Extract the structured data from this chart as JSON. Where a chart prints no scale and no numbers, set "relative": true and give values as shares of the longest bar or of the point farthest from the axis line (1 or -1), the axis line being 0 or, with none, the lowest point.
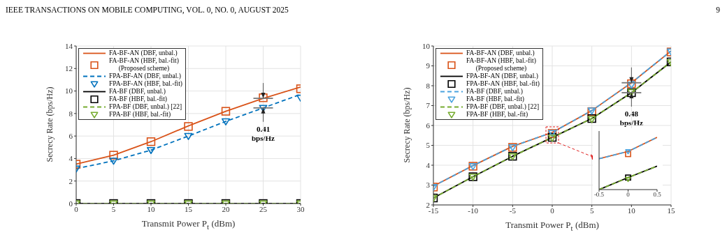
{
  "chart_data": [
    {
      "type": "line",
      "xlabel": "Transmit Power P$_{t}$ (dBm)",
      "ylabel": "Secrecy Rate (bps/Hz)",
      "x": [
        0,
        5,
        10,
        15,
        20,
        25,
        30
      ],
      "xlim": [
        0,
        30
      ],
      "xticks": [
        0,
        5,
        10,
        15,
        20,
        25,
        30
      ],
      "ylim": [
        0,
        14
      ],
      "yticks": [
        0,
        2,
        4,
        6,
        8,
        10,
        12,
        14
      ],
      "grid": true,
      "legend": "top left",
      "annotations": [
        "IEEE TRANSACTIONS ON MOBILE COMPUTING, VOL. 0, NO. 0, AUGUST 2025",
        {
          "text": "0.41\nbps/Hz",
          "x": 25,
          "y": 8.5
        }
      ],
      "series": [
        {
          "name": "FA-BF-AN (DBF, unbal.)",
          "type": "line",
          "color": "#d95319",
          "line_style": "solid",
          "marker": "none",
          "values": [
            3.5,
            4.3,
            5.5,
            6.9,
            8.2,
            9.35,
            10.35
          ]
        },
        {
          "name": "FA-BF-AN (HBF, bal.-fit)\n(Proposed scheme)",
          "type": "scatter",
          "color": "#d95319",
          "marker": "square",
          "values": [
            3.5,
            4.3,
            5.5,
            6.85,
            8.2,
            9.4,
            10.2
          ]
        },
        {
          "name": "FPA-BF-AN (DBF, unbal.)",
          "type": "line",
          "color": "#0072bd",
          "line_style": "dashed",
          "marker": "none",
          "values": [
            3.1,
            3.8,
            4.75,
            6.0,
            7.3,
            8.5,
            9.7
          ]
        },
        {
          "name": "FPA-BF-AN (HBF, bal.-fit)",
          "type": "scatter",
          "color": "#0072bd",
          "marker": "triangle",
          "values": [
            3.1,
            3.8,
            4.75,
            6.0,
            7.3,
            8.5,
            9.4
          ]
        },
        {
          "name": "FA-BF (DBF, unbal.)",
          "type": "line",
          "color": "#000000",
          "line_style": "solid",
          "marker": "none",
          "values": [
            0,
            0,
            0,
            0,
            0,
            0,
            0
          ]
        },
        {
          "name": "FA-BF (HBF, bal.-fit)",
          "type": "scatter",
          "color": "#000000",
          "marker": "square",
          "values": [
            0,
            0,
            0,
            0,
            0,
            0,
            0
          ]
        },
        {
          "name": "FPA-BF  (DBF, unbal.) [22]",
          "type": "line",
          "color": "#77ac30",
          "line_style": "dashed",
          "marker": "none",
          "values": [
            0,
            0,
            0,
            0,
            0,
            0,
            0
          ]
        },
        {
          "name": "FPA-BF (HBF, bal.-fit)",
          "type": "scatter",
          "color": "#77ac30",
          "marker": "triangle",
          "values": [
            0,
            0,
            0,
            0,
            0,
            0,
            0
          ]
        }
      ]
    },
    {
      "type": "line",
      "xlabel": "Transmit Power P$_{t}$ (dBm)",
      "ylabel": "Secrecy Rate (bps/Hz)",
      "x": [
        -15,
        -10,
        -5,
        0,
        5,
        10,
        15
      ],
      "xlim": [
        -15,
        15
      ],
      "xticks": [
        -15,
        -10,
        -5,
        0,
        5,
        10,
        15
      ],
      "ylim": [
        2,
        10
      ],
      "yticks": [
        2,
        3,
        4,
        5,
        6,
        7,
        8,
        9,
        10
      ],
      "grid": true,
      "legend": "top left",
      "annotations": [
        "9",
        {
          "text": "0.48\nbps/Hz",
          "x": 10,
          "y": 7.65
        }
      ],
      "series": [
        {
          "name": "FA-BF-AN (DBF, unbal.)",
          "type": "line",
          "color": "#d95319",
          "line_style": "solid",
          "marker": "none",
          "values": [
            2.95,
            3.98,
            4.95,
            5.65,
            6.75,
            8.15,
            9.75
          ]
        },
        {
          "name": "FA-BF-AN (HBF, bal.-fit)\n(Proposed scheme)",
          "type": "scatter",
          "color": "#d95319",
          "marker": "square",
          "values": [
            2.9,
            3.95,
            4.9,
            5.6,
            6.7,
            8.1,
            9.7
          ]
        },
        {
          "name": "FPA-BF-AN (DBF, unbal.)",
          "type": "line",
          "color": "#000000",
          "line_style": "solid",
          "marker": "none",
          "values": [
            2.35,
            3.42,
            4.45,
            5.4,
            6.35,
            7.65,
            9.2
          ]
        },
        {
          "name": "FPA-BF-AN (HBF, bal.-fit)",
          "type": "scatter",
          "color": "#000000",
          "marker": "square",
          "values": [
            2.35,
            3.42,
            4.45,
            5.4,
            6.35,
            7.65,
            9.2
          ]
        },
        {
          "name": "FA-BF (DBF, unbal.)",
          "type": "line",
          "color": "#4aa3df",
          "line_style": "dashed",
          "marker": "none",
          "values": [
            2.95,
            3.98,
            4.95,
            5.65,
            6.75,
            8.15,
            9.75
          ]
        },
        {
          "name": "FA-BF (HBF, bal.-fit)",
          "type": "scatter",
          "color": "#4aa3df",
          "marker": "triangle",
          "values": [
            2.9,
            3.95,
            4.9,
            5.62,
            6.75,
            8.05,
            9.72
          ]
        },
        {
          "name": "FPA-BF  (DBF, unbal.) [22]",
          "type": "line",
          "color": "#77ac30",
          "line_style": "dashed",
          "marker": "none",
          "values": [
            2.35,
            3.42,
            4.45,
            5.4,
            6.35,
            7.65,
            9.2
          ]
        },
        {
          "name": "FPA-BF (HBF, bal.-fit)",
          "type": "scatter",
          "color": "#77ac30",
          "marker": "triangle",
          "values": [
            2.35,
            3.42,
            4.45,
            5.38,
            6.32,
            7.68,
            9.18
          ]
        }
      ]
    },
    {
      "type": "line",
      "relative": true,
      "xlim": [
        -0.5,
        0.5
      ],
      "xticks": [
        -0.5,
        0,
        0.5
      ],
      "tick_labels": "x",
      "series": [
        {
          "type": "line",
          "color": "#d95319",
          "line_style": "solid",
          "marker": "none",
          "x": [
            -0.5,
            0,
            0.5
          ],
          "values": [
            0.59,
            0.73,
            1
          ]
        },
        {
          "type": "scatter",
          "color": "#d95319",
          "marker": "square",
          "x": [
            0
          ],
          "values": [
            0.68
          ]
        },
        {
          "type": "line",
          "color": "#000000",
          "line_style": "solid",
          "marker": "none",
          "x": [
            -0.5,
            0,
            0.5
          ],
          "values": [
            0,
            0.23,
            0.45
          ]
        },
        {
          "type": "scatter",
          "color": "#000000",
          "marker": "square",
          "x": [
            0
          ],
          "values": [
            0.23
          ]
        },
        {
          "type": "line",
          "color": "#4aa3df",
          "line_style": "dashed",
          "marker": "none",
          "x": [
            -0.5,
            0,
            0.5
          ],
          "values": [
            0.59,
            0.73,
            1
          ]
        },
        {
          "type": "scatter",
          "color": "#4aa3df",
          "marker": "triangle",
          "x": [
            0
          ],
          "values": [
            0.73
          ]
        },
        {
          "type": "line",
          "color": "#77ac30",
          "line_style": "dashed",
          "marker": "none",
          "x": [
            -0.5,
            0,
            0.5
          ],
          "values": [
            0,
            0.23,
            0.45
          ]
        },
        {
          "type": "scatter",
          "color": "#77ac30",
          "marker": "triangle",
          "x": [
            0
          ],
          "values": [
            0.2
          ]
        }
      ]
    }
  ]
}
